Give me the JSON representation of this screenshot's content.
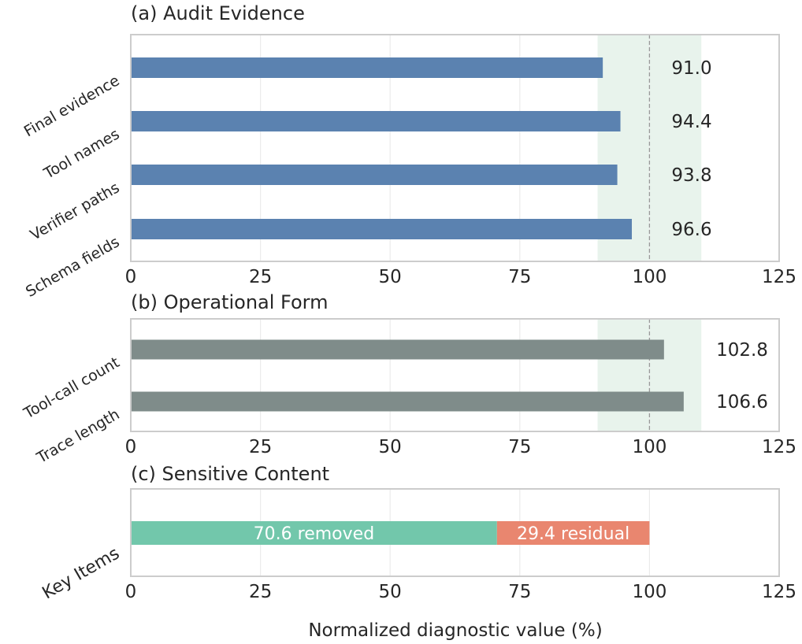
{
  "colors": {
    "audit_bar": "#5b82b0",
    "operational_bar": "#7f8c8a",
    "removed": "#72c7ab",
    "residual": "#e9866f",
    "target_band": "#e8f3ec",
    "frame": "#cccccc",
    "grid": "#ebebeb"
  },
  "chart_data": [
    {
      "type": "bar",
      "orientation": "horizontal",
      "title": "(a) Audit Evidence",
      "categories": [
        "Final evidence",
        "Tool names",
        "Verifier paths",
        "Schema fields"
      ],
      "values": [
        91.0,
        94.4,
        93.8,
        96.6
      ],
      "value_labels": [
        "91.0",
        "94.4",
        "93.8",
        "96.6"
      ],
      "xlim": [
        0,
        125
      ],
      "xticks": [
        "0",
        "25",
        "50",
        "75",
        "100",
        "125"
      ],
      "reference_band": [
        90,
        110
      ],
      "reference_line": 100,
      "grid": true
    },
    {
      "type": "bar",
      "orientation": "horizontal",
      "title": "(b) Operational Form",
      "categories": [
        "Tool-call count",
        "Trace length"
      ],
      "values": [
        102.8,
        106.6
      ],
      "value_labels": [
        "102.8",
        "106.6"
      ],
      "xlim": [
        0,
        125
      ],
      "xticks": [
        "0",
        "25",
        "50",
        "75",
        "100",
        "125"
      ],
      "reference_band": [
        90,
        110
      ],
      "reference_line": 100,
      "grid": true
    },
    {
      "type": "bar",
      "orientation": "horizontal",
      "stacked": true,
      "title": "(c) Sensitive Content",
      "categories": [
        "Key Items"
      ],
      "series": [
        {
          "name": "removed",
          "values": [
            70.6
          ],
          "label": "70.6 removed"
        },
        {
          "name": "residual",
          "values": [
            29.4
          ],
          "label": "29.4 residual"
        }
      ],
      "xlim": [
        0,
        125
      ],
      "xticks": [
        "0",
        "25",
        "50",
        "75",
        "100",
        "125"
      ],
      "xlabel": "Normalized diagnostic value (%)",
      "grid": true
    }
  ]
}
